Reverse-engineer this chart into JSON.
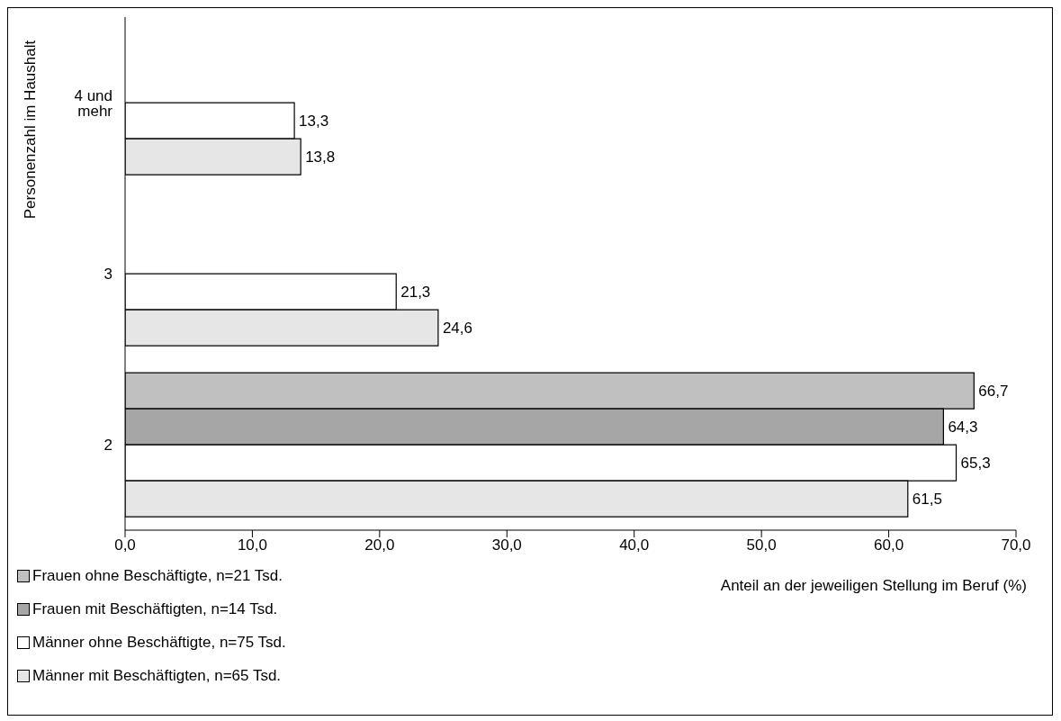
{
  "chart_data": {
    "type": "bar",
    "orientation": "horizontal",
    "xlabel": "Anteil an der jeweiligen Stellung im Beruf (%)",
    "ylabel": "Personenzahl im Haushalt",
    "categories": [
      "4 und mehr",
      "3",
      "2"
    ],
    "series": [
      {
        "name": "Frauen ohne Beschäftigte, n=21 Tsd.",
        "color": "#c0c0c0",
        "values": [
          null,
          null,
          66.7
        ],
        "value_labels": [
          null,
          null,
          "66,7"
        ]
      },
      {
        "name": "Frauen mit Beschäftigten, n=14 Tsd.",
        "color": "#a6a6a6",
        "values": [
          null,
          null,
          64.3
        ],
        "value_labels": [
          null,
          null,
          "64,3"
        ]
      },
      {
        "name": "Männer ohne Beschäftigte, n=75 Tsd.",
        "color": "#ffffff",
        "values": [
          13.3,
          21.3,
          65.3
        ],
        "value_labels": [
          "13,3",
          "21,3",
          "65,3"
        ]
      },
      {
        "name": "Männer mit Beschäftigten, n=65 Tsd.",
        "color": "#e6e6e6",
        "values": [
          13.8,
          24.6,
          61.5
        ],
        "value_labels": [
          "13,8",
          "24,6",
          "61,5"
        ]
      }
    ],
    "xlim": [
      0,
      70
    ],
    "xticks": [
      {
        "value": 0,
        "label": "0,0"
      },
      {
        "value": 10,
        "label": "10,0"
      },
      {
        "value": 20,
        "label": "20,0"
      },
      {
        "value": 30,
        "label": "30,0"
      },
      {
        "value": 40,
        "label": "40,0"
      },
      {
        "value": 50,
        "label": "50,0"
      },
      {
        "value": 60,
        "label": "60,0"
      },
      {
        "value": 70,
        "label": "70,0"
      }
    ],
    "grid": false,
    "legend": "bottom left"
  }
}
